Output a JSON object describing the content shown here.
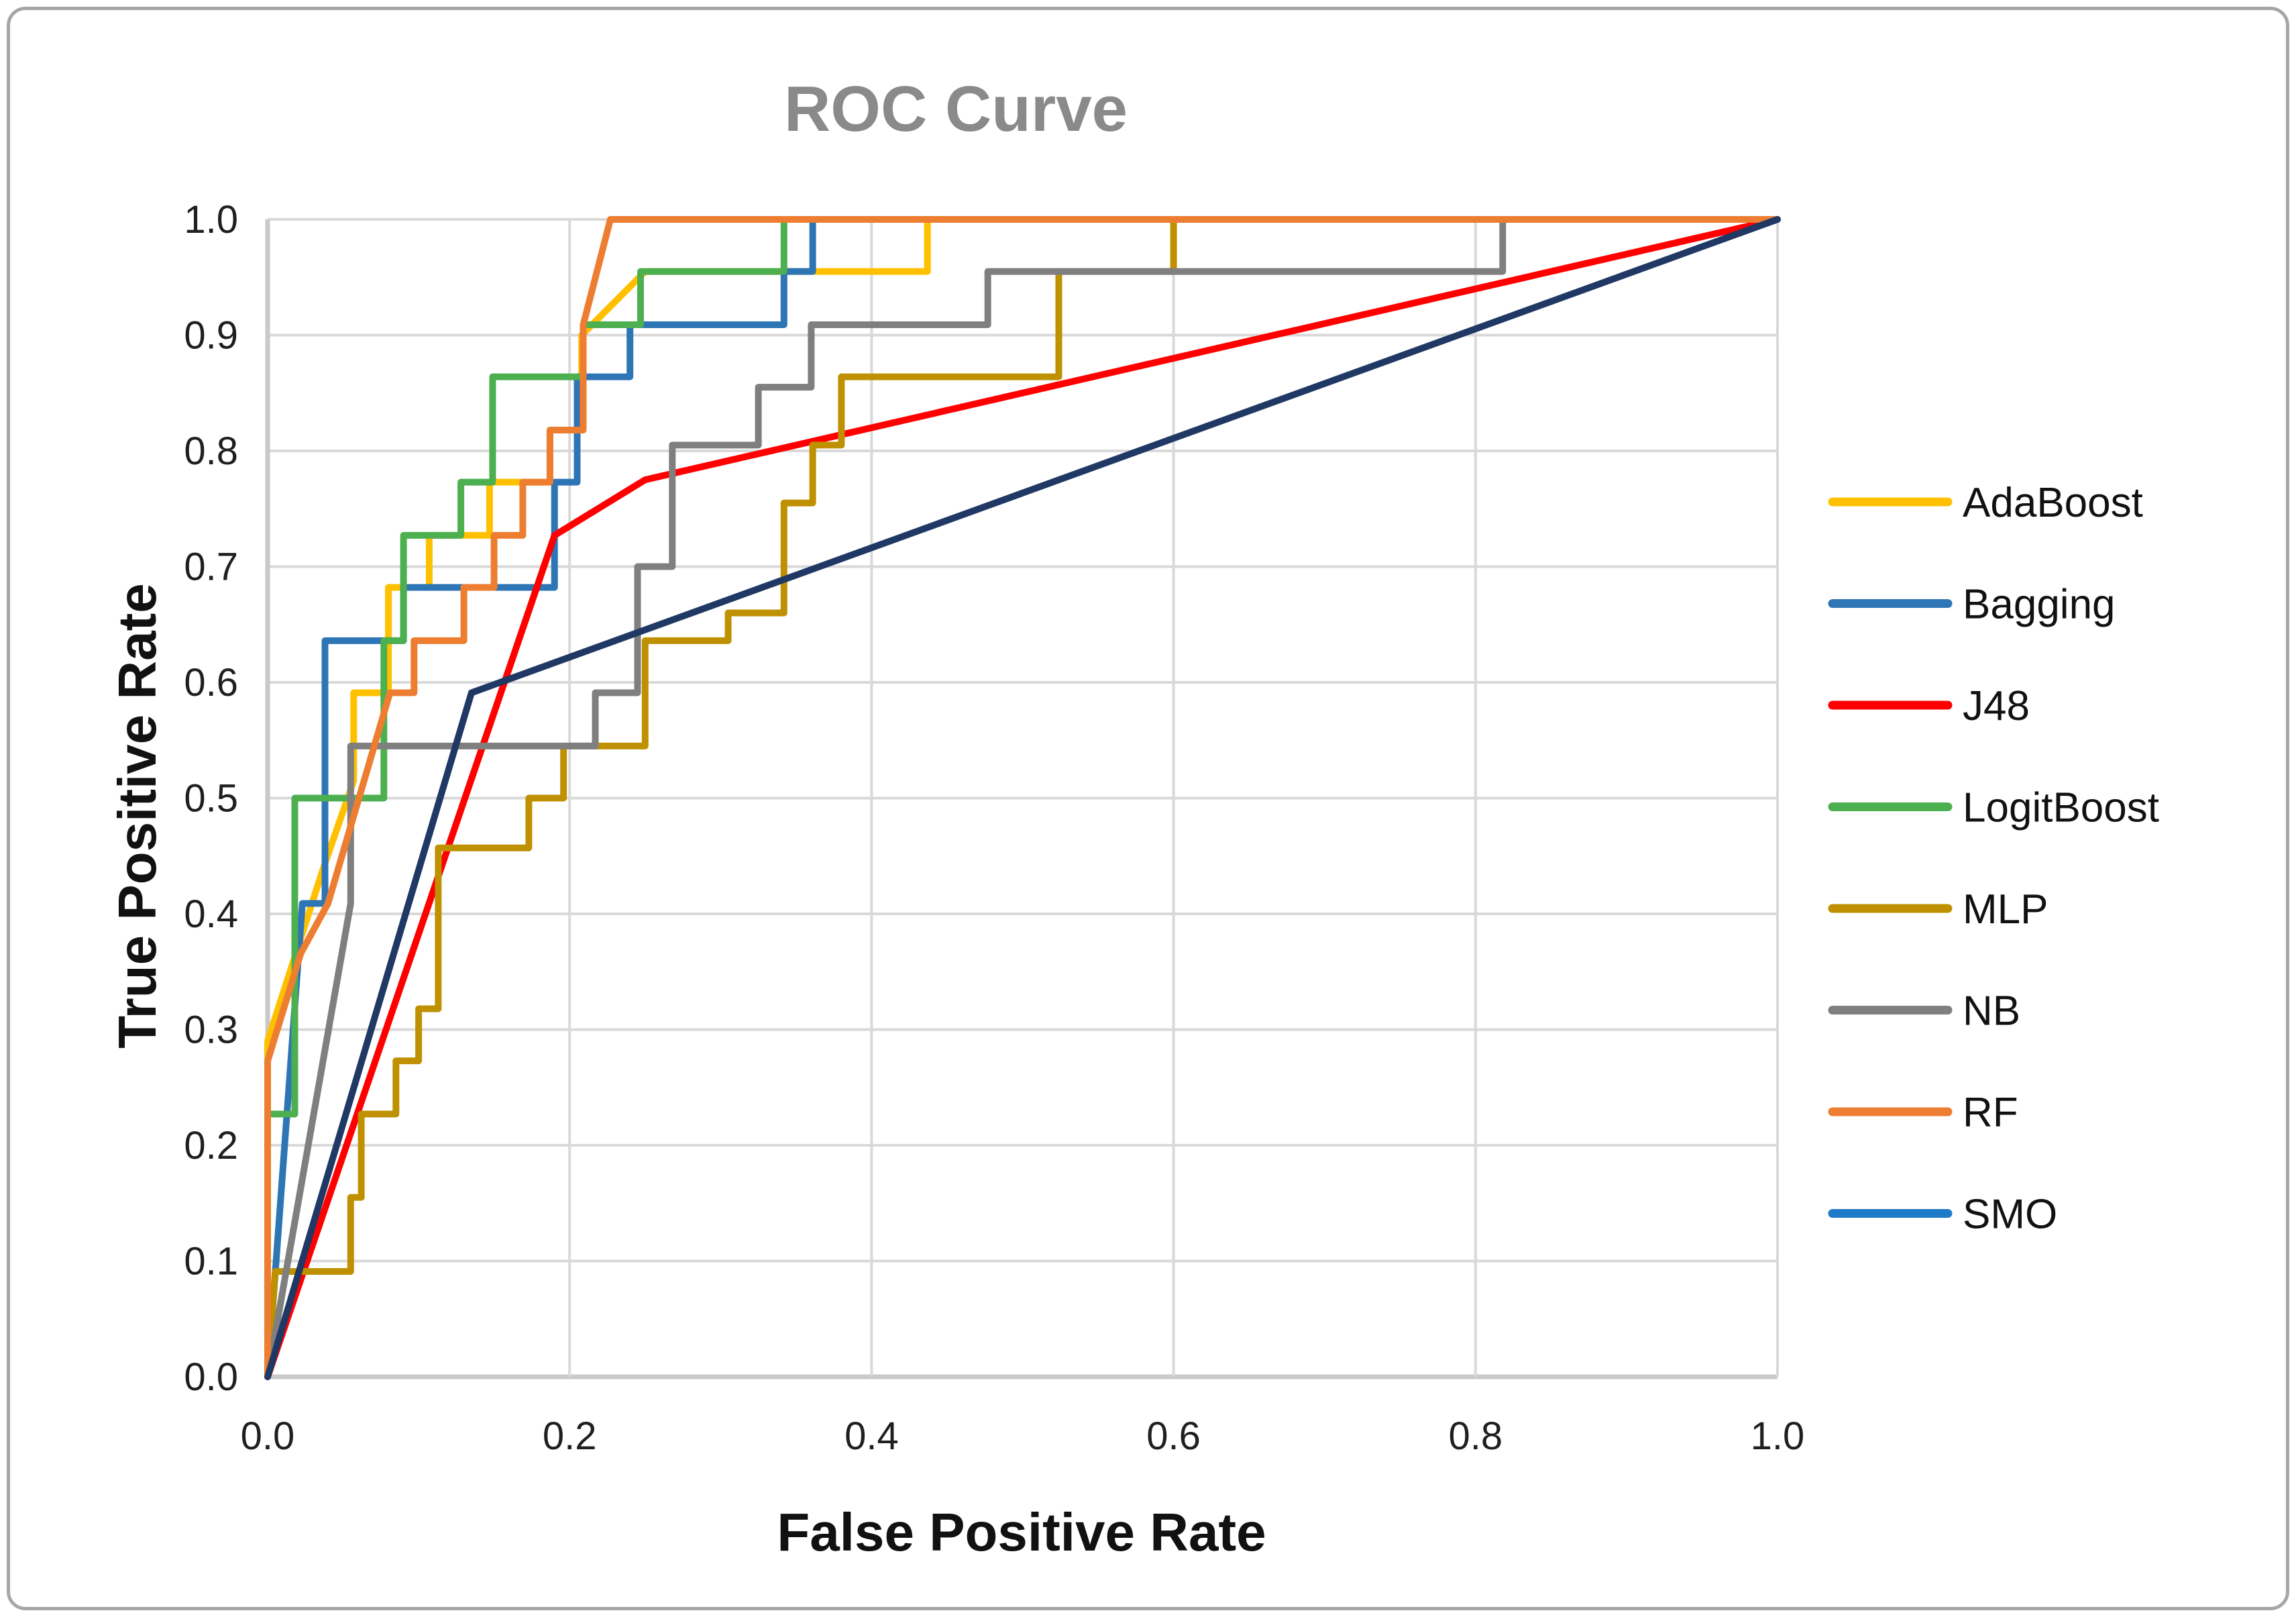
{
  "chart_data": {
    "type": "line",
    "title": "ROC Curve",
    "xlabel": "False Positive Rate",
    "ylabel": "True Positive Rate",
    "xlim": [
      0.0,
      1.0
    ],
    "ylim": [
      0.0,
      1.0
    ],
    "xticks": [
      "0.0",
      "0.2",
      "0.4",
      "0.6",
      "0.8",
      "1.0"
    ],
    "xtick_values": [
      0.0,
      0.2,
      0.4,
      0.6,
      0.8,
      1.0
    ],
    "yticks": [
      "0.0",
      "0.1",
      "0.2",
      "0.3",
      "0.4",
      "0.5",
      "0.6",
      "0.7",
      "0.8",
      "0.9",
      "1.0"
    ],
    "ytick_values": [
      0.0,
      0.1,
      0.2,
      0.3,
      0.4,
      0.5,
      0.6,
      0.7,
      0.8,
      0.9,
      1.0
    ],
    "grid": true,
    "legend_position": "right",
    "title_color": "#8a8a8a",
    "grid_color": "#d9d9d9",
    "axis_color": "#c9c9c9",
    "series": [
      {
        "name": "AdaBoost",
        "color": "#FFC000",
        "legend_color": "#FFC000",
        "points": [
          [
            0,
            0
          ],
          [
            0,
            0.29
          ],
          [
            0.037,
            0.44
          ],
          [
            0.057,
            0.515
          ],
          [
            0.057,
            0.591
          ],
          [
            0.08,
            0.591
          ],
          [
            0.08,
            0.682
          ],
          [
            0.107,
            0.682
          ],
          [
            0.107,
            0.727
          ],
          [
            0.147,
            0.727
          ],
          [
            0.147,
            0.773
          ],
          [
            0.187,
            0.773
          ],
          [
            0.187,
            0.818
          ],
          [
            0.208,
            0.818
          ],
          [
            0.208,
            0.9
          ],
          [
            0.25,
            0.955
          ],
          [
            0.437,
            0.955
          ],
          [
            0.437,
            1
          ],
          [
            1,
            1
          ]
        ]
      },
      {
        "name": "Bagging",
        "color": "#2E75B6",
        "legend_color": "#2E75B6",
        "points": [
          [
            0,
            0
          ],
          [
            0.023,
            0.409
          ],
          [
            0.038,
            0.409
          ],
          [
            0.038,
            0.636
          ],
          [
            0.09,
            0.636
          ],
          [
            0.09,
            0.682
          ],
          [
            0.19,
            0.682
          ],
          [
            0.19,
            0.773
          ],
          [
            0.205,
            0.773
          ],
          [
            0.205,
            0.864
          ],
          [
            0.24,
            0.864
          ],
          [
            0.24,
            0.909
          ],
          [
            0.342,
            0.909
          ],
          [
            0.342,
            0.955
          ],
          [
            0.361,
            0.955
          ],
          [
            0.361,
            1
          ],
          [
            1,
            1
          ]
        ]
      },
      {
        "name": "J48",
        "color": "#FF0000",
        "legend_color": "#FF0000",
        "points": [
          [
            0,
            0
          ],
          [
            0.19,
            0.727
          ],
          [
            0.25,
            0.775
          ],
          [
            1,
            1
          ]
        ]
      },
      {
        "name": "LogitBoost",
        "color": "#4CAF50",
        "legend_color": "#4CAF50",
        "points": [
          [
            0,
            0
          ],
          [
            0,
            0.227
          ],
          [
            0.018,
            0.227
          ],
          [
            0.018,
            0.5
          ],
          [
            0.077,
            0.5
          ],
          [
            0.077,
            0.636
          ],
          [
            0.09,
            0.636
          ],
          [
            0.09,
            0.727
          ],
          [
            0.128,
            0.727
          ],
          [
            0.128,
            0.773
          ],
          [
            0.149,
            0.773
          ],
          [
            0.149,
            0.864
          ],
          [
            0.209,
            0.864
          ],
          [
            0.209,
            0.909
          ],
          [
            0.247,
            0.909
          ],
          [
            0.247,
            0.955
          ],
          [
            0.342,
            0.955
          ],
          [
            0.342,
            1
          ],
          [
            1,
            1
          ]
        ]
      },
      {
        "name": "MLP",
        "color": "#BF9000",
        "legend_color": "#BF9000",
        "points": [
          [
            0,
            0
          ],
          [
            0.005,
            0.091
          ],
          [
            0.055,
            0.091
          ],
          [
            0.055,
            0.155
          ],
          [
            0.062,
            0.155
          ],
          [
            0.062,
            0.227
          ],
          [
            0.085,
            0.227
          ],
          [
            0.085,
            0.273
          ],
          [
            0.1,
            0.273
          ],
          [
            0.1,
            0.318
          ],
          [
            0.113,
            0.318
          ],
          [
            0.113,
            0.457
          ],
          [
            0.173,
            0.457
          ],
          [
            0.173,
            0.5
          ],
          [
            0.196,
            0.5
          ],
          [
            0.196,
            0.545
          ],
          [
            0.25,
            0.545
          ],
          [
            0.25,
            0.636
          ],
          [
            0.305,
            0.636
          ],
          [
            0.305,
            0.66
          ],
          [
            0.342,
            0.66
          ],
          [
            0.342,
            0.755
          ],
          [
            0.361,
            0.755
          ],
          [
            0.361,
            0.805
          ],
          [
            0.38,
            0.805
          ],
          [
            0.38,
            0.864
          ],
          [
            0.524,
            0.864
          ],
          [
            0.524,
            0.955
          ],
          [
            0.6,
            0.955
          ],
          [
            0.6,
            1
          ],
          [
            1,
            1
          ]
        ]
      },
      {
        "name": "NB",
        "color": "#7F7F7F",
        "legend_color": "#7F7F7F",
        "points": [
          [
            0,
            0
          ],
          [
            0.055,
            0.409
          ],
          [
            0.055,
            0.545
          ],
          [
            0.217,
            0.545
          ],
          [
            0.217,
            0.591
          ],
          [
            0.245,
            0.591
          ],
          [
            0.245,
            0.7
          ],
          [
            0.268,
            0.7
          ],
          [
            0.268,
            0.805
          ],
          [
            0.325,
            0.805
          ],
          [
            0.325,
            0.855
          ],
          [
            0.36,
            0.855
          ],
          [
            0.36,
            0.909
          ],
          [
            0.477,
            0.909
          ],
          [
            0.477,
            0.955
          ],
          [
            0.818,
            0.955
          ],
          [
            0.818,
            1
          ],
          [
            1,
            1
          ]
        ]
      },
      {
        "name": "RF",
        "color": "#ED7D31",
        "legend_color": "#ED7D31",
        "points": [
          [
            0,
            0
          ],
          [
            0,
            0.273
          ],
          [
            0.022,
            0.366
          ],
          [
            0.04,
            0.409
          ],
          [
            0.081,
            0.591
          ],
          [
            0.097,
            0.591
          ],
          [
            0.097,
            0.636
          ],
          [
            0.13,
            0.636
          ],
          [
            0.13,
            0.682
          ],
          [
            0.15,
            0.682
          ],
          [
            0.15,
            0.727
          ],
          [
            0.169,
            0.727
          ],
          [
            0.169,
            0.773
          ],
          [
            0.187,
            0.773
          ],
          [
            0.187,
            0.818
          ],
          [
            0.209,
            0.818
          ],
          [
            0.209,
            0.909
          ],
          [
            0.227,
            1
          ],
          [
            1,
            1
          ]
        ]
      },
      {
        "name": "SMO",
        "color": "#1F3864",
        "legend_color": "#1F7AC8",
        "points": [
          [
            0,
            0
          ],
          [
            0.135,
            0.591
          ],
          [
            1,
            1
          ]
        ]
      }
    ]
  }
}
